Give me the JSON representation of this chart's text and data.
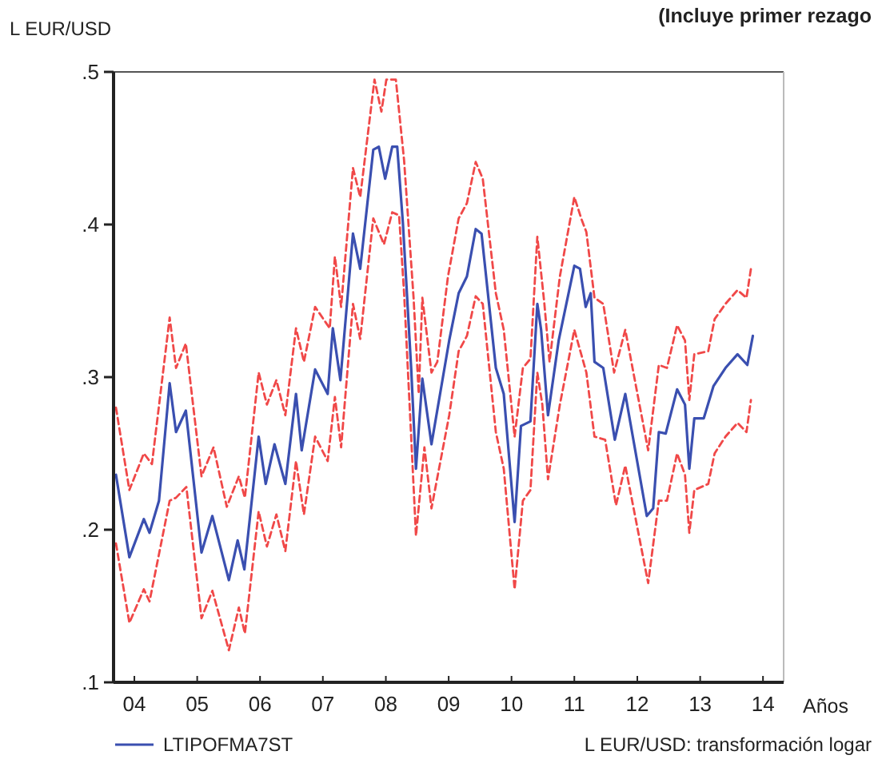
{
  "chart_data": {
    "type": "line",
    "title": "(Incluye primer rezago",
    "ylabel": "L EUR/USD",
    "xlabel": "Años",
    "annotations": [
      "L EUR/USD: transformación logar"
    ],
    "xlim": [
      "2004-03-02",
      "2014-10-29"
    ],
    "xticks": [
      {
        "value": "2004-07-01",
        "label": "04"
      },
      {
        "value": "2005-07-01",
        "label": "05"
      },
      {
        "value": "2006-07-01",
        "label": "06"
      },
      {
        "value": "2007-07-01",
        "label": "07"
      },
      {
        "value": "2008-07-01",
        "label": "08"
      },
      {
        "value": "2009-07-01",
        "label": "09"
      },
      {
        "value": "2010-07-01",
        "label": "10"
      },
      {
        "value": "2011-07-01",
        "label": "11"
      },
      {
        "value": "2012-07-01",
        "label": "12"
      },
      {
        "value": "2013-07-01",
        "label": "13"
      },
      {
        "value": "2014-07-01",
        "label": "14"
      }
    ],
    "ylim": [
      0.1,
      0.5
    ],
    "yticks": [
      {
        "value": 0.1,
        "label": ".1"
      },
      {
        "value": 0.2,
        "label": ".2"
      },
      {
        "value": 0.3,
        "label": ".3"
      },
      {
        "value": 0.4,
        "label": ".4"
      },
      {
        "value": 0.5,
        "label": ".5"
      }
    ],
    "grid": false,
    "legend": "bottom left",
    "marker": "none",
    "series": [
      {
        "color": "#f04848",
        "line_style": "dashed",
        "x": [
          "2004-03-16",
          "2004-06-02",
          "2004-08-25",
          "2004-10-11",
          "2005-01-22",
          "2005-02-28",
          "2005-04-26",
          "2005-07-26",
          "2005-10-04",
          "2005-12-20",
          "2006-02-28",
          "2006-04-04",
          "2006-06-23",
          "2006-08-10",
          "2006-10-04",
          "2006-11-25",
          "2007-01-26",
          "2007-03-13",
          "2007-05-17",
          "2007-08-10",
          "2007-09-09",
          "2007-10-15",
          "2007-12-23",
          "2008-02-03",
          "2008-04-26",
          "2008-06-05",
          "2008-07-04",
          "2008-08-28",
          "2008-10-15",
          "2008-12-09",
          "2009-01-08",
          "2009-01-29",
          "2009-03-23",
          "2009-04-26",
          "2009-06-27",
          "2009-08-28",
          "2009-10-15",
          "2009-12-05",
          "2010-01-15",
          "2010-04-01",
          "2010-05-17",
          "2010-07-19",
          "2010-09-05",
          "2010-10-19",
          "2010-11-28",
          "2011-01-08",
          "2011-02-07",
          "2011-04-08",
          "2011-07-01",
          "2011-08-10",
          "2011-09-09",
          "2011-10-26",
          "2011-12-16",
          "2012-02-17",
          "2012-04-22",
          "2012-09-02",
          "2012-11-03",
          "2012-12-20",
          "2013-02-17",
          "2013-04-04",
          "2013-04-29",
          "2013-05-28",
          "2013-08-17",
          "2013-09-23",
          "2013-11-25",
          "2014-02-03",
          "2014-03-27",
          "2014-04-22"
        ],
        "values": [
          0.28,
          0.226,
          0.25,
          0.243,
          0.339,
          0.306,
          0.322,
          0.235,
          0.254,
          0.215,
          0.235,
          0.221,
          0.303,
          0.282,
          0.298,
          0.275,
          0.332,
          0.31,
          0.346,
          0.332,
          0.379,
          0.346,
          0.437,
          0.418,
          0.495,
          0.474,
          0.495,
          0.495,
          0.442,
          0.352,
          0.289,
          0.352,
          0.303,
          0.31,
          0.366,
          0.404,
          0.414,
          0.441,
          0.43,
          0.355,
          0.331,
          0.261,
          0.306,
          0.312,
          0.392,
          0.348,
          0.31,
          0.366,
          0.418,
          0.404,
          0.395,
          0.352,
          0.348,
          0.303,
          0.331,
          0.252,
          0.308,
          0.306,
          0.334,
          0.324,
          0.285,
          0.315,
          0.317,
          0.338,
          0.348,
          0.357,
          0.352,
          0.371
        ]
      },
      {
        "color": "#f04848",
        "line_style": "dashed",
        "x": [
          "2004-03-16",
          "2004-06-02",
          "2004-08-25",
          "2004-09-27",
          "2005-01-22",
          "2005-02-28",
          "2005-04-29",
          "2005-07-26",
          "2005-09-27",
          "2006-01-01",
          "2006-02-28",
          "2006-04-04",
          "2006-06-23",
          "2006-08-10",
          "2006-10-04",
          "2006-11-25",
          "2007-01-26",
          "2007-03-13",
          "2007-05-17",
          "2007-07-29",
          "2007-09-09",
          "2007-10-15",
          "2007-12-23",
          "2008-02-03",
          "2008-04-19",
          "2008-06-20",
          "2008-08-07",
          "2008-09-16",
          "2008-10-15",
          "2008-11-25",
          "2008-12-23",
          "2009-02-10",
          "2009-03-23",
          "2009-07-04",
          "2009-08-28",
          "2009-10-15",
          "2009-12-05",
          "2010-01-15",
          "2010-04-01",
          "2010-05-17",
          "2010-07-19",
          "2010-09-05",
          "2010-10-19",
          "2010-11-28",
          "2010-12-27",
          "2011-01-29",
          "2011-04-08",
          "2011-07-01",
          "2011-09-09",
          "2011-10-26",
          "2011-12-27",
          "2012-02-28",
          "2012-04-22",
          "2012-09-02",
          "2012-11-03",
          "2012-12-20",
          "2013-02-17",
          "2013-04-04",
          "2013-04-29",
          "2013-05-28",
          "2013-08-17",
          "2013-09-23",
          "2013-11-25",
          "2014-02-03",
          "2014-03-27",
          "2014-04-22"
        ],
        "values": [
          0.191,
          0.139,
          0.161,
          0.153,
          0.219,
          0.221,
          0.228,
          0.142,
          0.16,
          0.121,
          0.149,
          0.132,
          0.212,
          0.189,
          0.21,
          0.186,
          0.245,
          0.21,
          0.261,
          0.245,
          0.287,
          0.254,
          0.348,
          0.325,
          0.404,
          0.387,
          0.408,
          0.406,
          0.355,
          0.261,
          0.196,
          0.254,
          0.214,
          0.275,
          0.317,
          0.327,
          0.353,
          0.348,
          0.264,
          0.24,
          0.161,
          0.219,
          0.226,
          0.303,
          0.282,
          0.233,
          0.282,
          0.331,
          0.303,
          0.261,
          0.259,
          0.216,
          0.242,
          0.165,
          0.219,
          0.219,
          0.25,
          0.236,
          0.198,
          0.226,
          0.23,
          0.25,
          0.261,
          0.27,
          0.264,
          0.285
        ]
      },
      {
        "name": "LTIPOFMA7ST",
        "color": "#3a4fb0",
        "line_style": "solid",
        "x": [
          "2004-03-16",
          "2004-06-02",
          "2004-08-25",
          "2004-09-27",
          "2004-11-21",
          "2005-01-22",
          "2005-02-28",
          "2005-04-26",
          "2005-07-26",
          "2005-09-27",
          "2006-01-01",
          "2006-02-21",
          "2006-04-01",
          "2006-06-23",
          "2006-08-03",
          "2006-09-23",
          "2006-11-25",
          "2007-01-26",
          "2007-02-28",
          "2007-05-17",
          "2007-07-29",
          "2007-08-28",
          "2007-10-11",
          "2007-12-23",
          "2008-02-03",
          "2008-04-19",
          "2008-05-21",
          "2008-06-27",
          "2008-08-07",
          "2008-09-05",
          "2008-10-08",
          "2008-11-25",
          "2008-12-23",
          "2009-01-29",
          "2009-03-23",
          "2009-07-04",
          "2009-08-28",
          "2009-10-15",
          "2009-12-05",
          "2010-01-08",
          "2010-04-01",
          "2010-05-17",
          "2010-07-19",
          "2010-08-25",
          "2010-10-19",
          "2010-11-28",
          "2010-12-20",
          "2011-01-29",
          "2011-04-01",
          "2011-07-01",
          "2011-08-03",
          "2011-09-05",
          "2011-10-04",
          "2011-10-26",
          "2011-12-16",
          "2012-02-21",
          "2012-04-22",
          "2012-08-25",
          "2012-10-01",
          "2012-11-03",
          "2012-12-13",
          "2013-02-17",
          "2013-04-04",
          "2013-04-29",
          "2013-05-28",
          "2013-07-22",
          "2013-09-16",
          "2013-11-25",
          "2014-02-03",
          "2014-04-01",
          "2014-05-03"
        ],
        "values": [
          0.236,
          0.182,
          0.207,
          0.198,
          0.219,
          0.296,
          0.264,
          0.278,
          0.185,
          0.209,
          0.167,
          0.193,
          0.174,
          0.261,
          0.23,
          0.256,
          0.23,
          0.289,
          0.252,
          0.305,
          0.289,
          0.332,
          0.298,
          0.394,
          0.371,
          0.449,
          0.451,
          0.43,
          0.451,
          0.451,
          0.401,
          0.306,
          0.24,
          0.299,
          0.256,
          0.324,
          0.355,
          0.366,
          0.397,
          0.394,
          0.306,
          0.289,
          0.205,
          0.268,
          0.271,
          0.348,
          0.331,
          0.275,
          0.324,
          0.373,
          0.371,
          0.346,
          0.355,
          0.31,
          0.306,
          0.259,
          0.289,
          0.209,
          0.214,
          0.264,
          0.263,
          0.292,
          0.282,
          0.24,
          0.273,
          0.273,
          0.294,
          0.306,
          0.315,
          0.308,
          0.327
        ]
      }
    ]
  }
}
